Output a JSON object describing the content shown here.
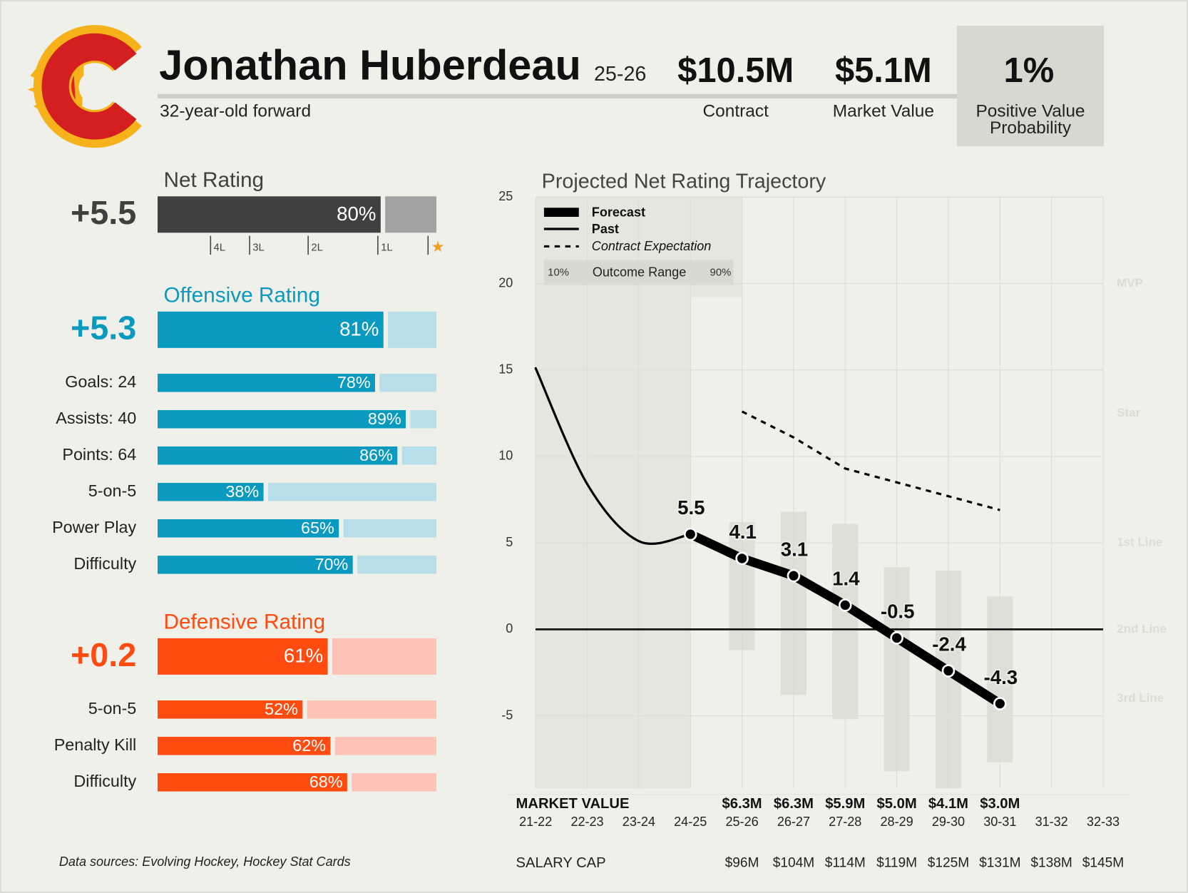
{
  "header": {
    "title": "Jonathan Huberdeau",
    "season": "25-26",
    "subtitle": "32-year-old forward",
    "stats": [
      {
        "value": "$10.5M",
        "label": "Contract"
      },
      {
        "value": "$5.1M",
        "label": "Market Value"
      }
    ],
    "probability": {
      "value": "1%",
      "label": "Positive Value Probability"
    }
  },
  "net_rating": {
    "title": "Net Rating",
    "value": "+5.5",
    "percentile": 80,
    "percentile_label": "80%",
    "color": "#404040",
    "track_color": "#a3a3a3",
    "markers": [
      {
        "value": 19,
        "label": "4L"
      },
      {
        "value": 33,
        "label": "3L"
      },
      {
        "value": 54,
        "label": "2L"
      },
      {
        "value": 79,
        "label": "1L"
      },
      {
        "value": 97,
        "label": "★"
      }
    ]
  },
  "offensive_rating": {
    "title": "Offensive Rating",
    "value": "+5.3",
    "percentile": 81,
    "percentile_label": "81%",
    "color": "#0a9ac0",
    "track_color": "#b8dfe9",
    "rows": [
      {
        "label": "Goals: 24",
        "percentile": 78,
        "percentile_label": "78%"
      },
      {
        "label": "Assists: 40",
        "percentile": 89,
        "percentile_label": "89%"
      },
      {
        "label": "Points: 64",
        "percentile": 86,
        "percentile_label": "86%"
      },
      {
        "label": "5-on-5",
        "percentile": 38,
        "percentile_label": "38%"
      },
      {
        "label": "Power Play",
        "percentile": 65,
        "percentile_label": "65%"
      },
      {
        "label": "Difficulty",
        "percentile": 70,
        "percentile_label": "70%"
      }
    ]
  },
  "defensive_rating": {
    "title": "Defensive Rating",
    "value": "+0.2",
    "percentile": 61,
    "percentile_label": "61%",
    "color": "#ff4a10",
    "track_color": "#ffc2b6",
    "rows": [
      {
        "label": "5-on-5",
        "percentile": 52,
        "percentile_label": "52%"
      },
      {
        "label": "Penalty Kill",
        "percentile": 62,
        "percentile_label": "62%"
      },
      {
        "label": "Difficulty",
        "percentile": 68,
        "percentile_label": "68%"
      }
    ]
  },
  "chart_data": {
    "type": "line",
    "title": "Projected Net Rating Trajectory",
    "categories": [
      "21-22",
      "22-23",
      "23-24",
      "24-25",
      "25-26",
      "26-27",
      "27-28",
      "28-29",
      "29-30",
      "30-31",
      "31-32",
      "32-33"
    ],
    "ylim": [
      -9.2,
      25
    ],
    "yticks": [
      -5,
      0,
      5,
      10,
      15,
      20,
      25
    ],
    "grid": true,
    "series": [
      {
        "name": "Forecast",
        "color": "#000000",
        "markers": true,
        "labels": true,
        "values": [
          null,
          null,
          null,
          5.5,
          4.1,
          3.1,
          1.4,
          -0.5,
          -2.4,
          -4.3,
          null,
          null
        ]
      },
      {
        "name": "Past",
        "color": "#000000",
        "values": [
          15.1,
          8.4,
          5.1,
          5.5,
          null,
          null,
          null,
          null,
          null,
          null,
          null,
          null
        ]
      },
      {
        "name": "Contract Expectation",
        "color": "#000000",
        "dashed": true,
        "values": [
          null,
          null,
          null,
          null,
          12.6,
          11.1,
          9.3,
          8.5,
          7.7,
          6.9,
          null,
          null
        ]
      }
    ],
    "range": {
      "name": "Outcome Range",
      "color": "#d9d9d0",
      "range_labels": [
        "10%",
        "90%"
      ],
      "low": [
        null,
        null,
        null,
        null,
        -1.2,
        -3.8,
        -5.2,
        -8.2,
        -9.5,
        -7.7,
        null,
        null
      ],
      "high": [
        null,
        null,
        null,
        null,
        6.2,
        6.8,
        6.1,
        3.6,
        3.4,
        1.9,
        null,
        null
      ]
    },
    "tiers": [
      {
        "value": 20,
        "label": "MVP"
      },
      {
        "value": 12.5,
        "label": "Star"
      },
      {
        "value": 5,
        "label": "1st Line"
      },
      {
        "value": 0,
        "label": "2nd Line"
      },
      {
        "value": -4,
        "label": "3rd Line"
      }
    ],
    "market_value": {
      "label": "MARKET VALUE",
      "values": [
        null,
        null,
        null,
        null,
        "$6.3M",
        "$6.3M",
        "$5.9M",
        "$5.0M",
        "$4.1M",
        "$3.0M",
        null,
        null
      ]
    },
    "salary_cap": {
      "label": "SALARY CAP",
      "values": [
        null,
        null,
        null,
        null,
        "$96M",
        "$104M",
        "$114M",
        "$119M",
        "$125M",
        "$131M",
        "$138M",
        "$145M"
      ]
    }
  },
  "footer": "Data sources: Evolving Hockey, Hockey Stat Cards"
}
